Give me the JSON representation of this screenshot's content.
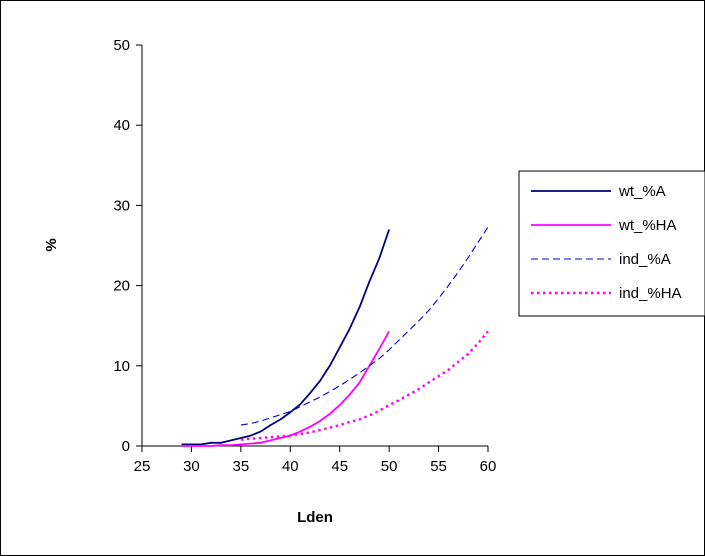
{
  "chart_data": {
    "type": "line",
    "title": "",
    "xlabel": "Lden",
    "ylabel": "%",
    "xlim": [
      25,
      60
    ],
    "ylim": [
      0,
      50
    ],
    "x_ticks": [
      25,
      30,
      35,
      40,
      45,
      50,
      55,
      60
    ],
    "y_ticks": [
      0,
      10,
      20,
      30,
      40,
      50
    ],
    "grid": false,
    "legend_position": "right",
    "series": [
      {
        "name": "wt_%A",
        "color": "#000080",
        "dash": "solid",
        "x": [
          29,
          30,
          31,
          32,
          33,
          34,
          35,
          36,
          37,
          38,
          39,
          40,
          41,
          42,
          43,
          44,
          45,
          46,
          47,
          48,
          49,
          50
        ],
        "y": [
          0.2,
          0.2,
          0.2,
          0.4,
          0.4,
          0.7,
          1.0,
          1.3,
          1.8,
          2.6,
          3.3,
          4.2,
          5.2,
          6.6,
          8.1,
          10.0,
          12.3,
          14.6,
          17.3,
          20.5,
          23.4,
          27.0
        ]
      },
      {
        "name": "wt_%HA",
        "color": "#ff00ff",
        "dash": "solid",
        "x": [
          29,
          30,
          31,
          32,
          33,
          34,
          35,
          36,
          37,
          38,
          39,
          40,
          41,
          42,
          43,
          44,
          45,
          46,
          47,
          48,
          49,
          50
        ],
        "y": [
          0.0,
          0.0,
          0.0,
          0.0,
          0.1,
          0.1,
          0.2,
          0.3,
          0.4,
          0.7,
          1.0,
          1.3,
          1.8,
          2.4,
          3.1,
          4.0,
          5.1,
          6.4,
          7.9,
          10.0,
          12.1,
          14.3
        ]
      },
      {
        "name": "ind_%A",
        "color": "#0000cc",
        "dash": "dashed",
        "x": [
          35,
          36,
          37,
          38,
          39,
          40,
          41,
          42,
          43,
          44,
          45,
          46,
          47,
          48,
          49,
          50,
          51,
          52,
          53,
          54,
          55,
          56,
          57,
          58,
          59,
          60
        ],
        "y": [
          2.6,
          2.8,
          3.1,
          3.5,
          3.9,
          4.3,
          4.9,
          5.5,
          6.1,
          6.8,
          7.5,
          8.3,
          9.1,
          10.0,
          10.9,
          12.0,
          13.2,
          14.4,
          15.6,
          16.9,
          18.4,
          20.0,
          21.7,
          23.5,
          25.4,
          27.3
        ]
      },
      {
        "name": "ind_%HA",
        "color": "#ff00ff",
        "dash": "dotted",
        "x": [
          35,
          36,
          37,
          38,
          39,
          40,
          41,
          42,
          43,
          44,
          45,
          46,
          47,
          48,
          49,
          50,
          51,
          52,
          53,
          54,
          55,
          56,
          57,
          58,
          59,
          60
        ],
        "y": [
          0.8,
          0.9,
          1.0,
          1.1,
          1.2,
          1.3,
          1.5,
          1.7,
          2.0,
          2.3,
          2.6,
          3.0,
          3.3,
          3.8,
          4.4,
          5.1,
          5.7,
          6.4,
          7.1,
          7.9,
          8.7,
          9.5,
          10.5,
          11.5,
          12.8,
          14.3
        ]
      }
    ]
  }
}
